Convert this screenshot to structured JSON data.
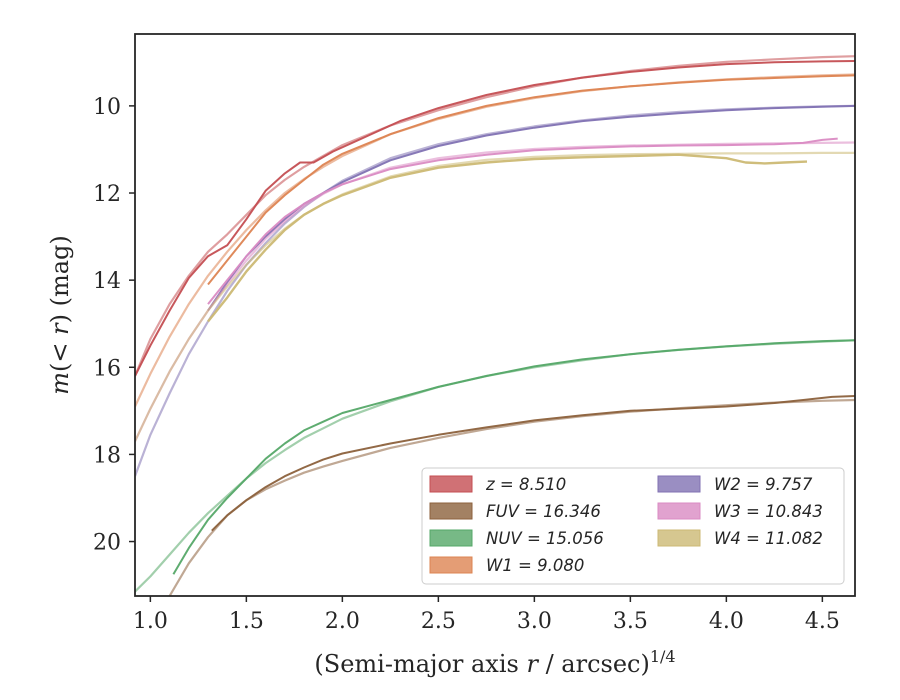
{
  "chart_data": {
    "type": "line",
    "xlabel": "(Semi-major axis r / arcsec)^{1/4}",
    "ylabel": "m(<r) (mag)",
    "xlim": [
      0.92,
      4.67
    ],
    "ylim": [
      21.25,
      8.35
    ],
    "y_inverted": true,
    "x_ticks": [
      1.0,
      1.5,
      2.0,
      2.5,
      3.0,
      3.5,
      4.0,
      4.5
    ],
    "x_tick_labels": [
      "1.0",
      "1.5",
      "2.0",
      "2.5",
      "3.0",
      "3.5",
      "4.0",
      "4.5"
    ],
    "y_ticks": [
      10,
      12,
      14,
      16,
      18,
      20
    ],
    "y_tick_labels": [
      "10",
      "12",
      "14",
      "16",
      "18",
      "20"
    ],
    "grid": false,
    "legend_position": "lower-right",
    "legend_columns": 2,
    "series": [
      {
        "name": "z = 8.510",
        "color": "#c44e52",
        "data_line": [
          [
            0.92,
            16.2
          ],
          [
            1.0,
            15.5
          ],
          [
            1.1,
            14.7
          ],
          [
            1.2,
            13.95
          ],
          [
            1.3,
            13.45
          ],
          [
            1.4,
            13.2
          ],
          [
            1.5,
            12.6
          ],
          [
            1.6,
            11.95
          ],
          [
            1.7,
            11.55
          ],
          [
            1.78,
            11.3
          ],
          [
            1.85,
            11.3
          ],
          [
            1.95,
            11.05
          ],
          [
            2.1,
            10.75
          ],
          [
            2.3,
            10.35
          ],
          [
            2.5,
            10.05
          ],
          [
            2.75,
            9.75
          ],
          [
            3.0,
            9.52
          ],
          [
            3.25,
            9.35
          ],
          [
            3.5,
            9.22
          ],
          [
            3.75,
            9.12
          ],
          [
            4.0,
            9.04
          ],
          [
            4.25,
            9.0
          ],
          [
            4.5,
            8.98
          ],
          [
            4.67,
            8.97
          ]
        ],
        "model_line": [
          [
            0.92,
            16.2
          ],
          [
            1.0,
            15.35
          ],
          [
            1.1,
            14.55
          ],
          [
            1.2,
            13.9
          ],
          [
            1.3,
            13.35
          ],
          [
            1.4,
            12.95
          ],
          [
            1.5,
            12.5
          ],
          [
            1.6,
            12.05
          ],
          [
            1.7,
            11.7
          ],
          [
            1.8,
            11.4
          ],
          [
            1.9,
            11.15
          ],
          [
            2.0,
            10.9
          ],
          [
            2.25,
            10.45
          ],
          [
            2.5,
            10.1
          ],
          [
            2.75,
            9.8
          ],
          [
            3.0,
            9.55
          ],
          [
            3.25,
            9.35
          ],
          [
            3.5,
            9.2
          ],
          [
            3.75,
            9.08
          ],
          [
            4.0,
            8.99
          ],
          [
            4.25,
            8.93
          ],
          [
            4.5,
            8.88
          ],
          [
            4.67,
            8.86
          ]
        ]
      },
      {
        "name": "FUV = 16.346",
        "color": "#8c613c",
        "data_line": [
          [
            1.32,
            19.75
          ],
          [
            1.4,
            19.4
          ],
          [
            1.5,
            19.05
          ],
          [
            1.6,
            18.75
          ],
          [
            1.7,
            18.5
          ],
          [
            1.8,
            18.3
          ],
          [
            1.9,
            18.12
          ],
          [
            2.0,
            17.98
          ],
          [
            2.25,
            17.75
          ],
          [
            2.5,
            17.55
          ],
          [
            2.75,
            17.38
          ],
          [
            3.0,
            17.22
          ],
          [
            3.25,
            17.1
          ],
          [
            3.5,
            17.0
          ],
          [
            3.75,
            16.95
          ],
          [
            4.0,
            16.9
          ],
          [
            4.25,
            16.82
          ],
          [
            4.4,
            16.75
          ],
          [
            4.55,
            16.68
          ],
          [
            4.67,
            16.66
          ]
        ],
        "model_line": [
          [
            1.1,
            21.25
          ],
          [
            1.2,
            20.5
          ],
          [
            1.3,
            19.9
          ],
          [
            1.4,
            19.4
          ],
          [
            1.5,
            19.05
          ],
          [
            1.6,
            18.8
          ],
          [
            1.7,
            18.6
          ],
          [
            1.8,
            18.42
          ],
          [
            1.9,
            18.28
          ],
          [
            2.0,
            18.15
          ],
          [
            2.25,
            17.85
          ],
          [
            2.5,
            17.62
          ],
          [
            2.75,
            17.42
          ],
          [
            3.0,
            17.25
          ],
          [
            3.25,
            17.12
          ],
          [
            3.5,
            17.02
          ],
          [
            3.75,
            16.94
          ],
          [
            4.0,
            16.87
          ],
          [
            4.25,
            16.81
          ],
          [
            4.5,
            16.77
          ],
          [
            4.67,
            16.75
          ]
        ]
      },
      {
        "name": "NUV = 15.056",
        "color": "#55a868",
        "data_line": [
          [
            1.12,
            20.75
          ],
          [
            1.2,
            20.15
          ],
          [
            1.3,
            19.5
          ],
          [
            1.4,
            19.0
          ],
          [
            1.5,
            18.55
          ],
          [
            1.6,
            18.1
          ],
          [
            1.7,
            17.75
          ],
          [
            1.8,
            17.45
          ],
          [
            1.9,
            17.25
          ],
          [
            2.0,
            17.05
          ],
          [
            2.25,
            16.75
          ],
          [
            2.5,
            16.45
          ],
          [
            2.75,
            16.2
          ],
          [
            3.0,
            15.98
          ],
          [
            3.25,
            15.82
          ],
          [
            3.5,
            15.7
          ],
          [
            3.75,
            15.6
          ],
          [
            4.0,
            15.52
          ],
          [
            4.25,
            15.45
          ],
          [
            4.5,
            15.4
          ],
          [
            4.67,
            15.38
          ]
        ],
        "model_line": [
          [
            0.92,
            21.15
          ],
          [
            1.0,
            20.8
          ],
          [
            1.1,
            20.3
          ],
          [
            1.2,
            19.8
          ],
          [
            1.3,
            19.35
          ],
          [
            1.4,
            18.95
          ],
          [
            1.5,
            18.55
          ],
          [
            1.6,
            18.2
          ],
          [
            1.7,
            17.9
          ],
          [
            1.8,
            17.62
          ],
          [
            1.9,
            17.4
          ],
          [
            2.0,
            17.18
          ],
          [
            2.25,
            16.78
          ],
          [
            2.5,
            16.45
          ],
          [
            2.75,
            16.2
          ],
          [
            3.0,
            16.0
          ],
          [
            3.25,
            15.84
          ],
          [
            3.5,
            15.7
          ],
          [
            3.75,
            15.6
          ],
          [
            4.0,
            15.52
          ],
          [
            4.25,
            15.46
          ],
          [
            4.5,
            15.41
          ],
          [
            4.67,
            15.38
          ]
        ]
      },
      {
        "name": "W1 = 9.080",
        "color": "#dd8452",
        "data_line": [
          [
            1.3,
            14.1
          ],
          [
            1.4,
            13.55
          ],
          [
            1.5,
            13.0
          ],
          [
            1.6,
            12.45
          ],
          [
            1.7,
            12.05
          ],
          [
            1.8,
            11.7
          ],
          [
            1.9,
            11.35
          ],
          [
            2.0,
            11.1
          ],
          [
            2.25,
            10.65
          ],
          [
            2.5,
            10.28
          ],
          [
            2.75,
            10.0
          ],
          [
            3.0,
            9.8
          ],
          [
            3.25,
            9.65
          ],
          [
            3.5,
            9.55
          ],
          [
            3.75,
            9.47
          ],
          [
            4.0,
            9.4
          ],
          [
            4.25,
            9.36
          ],
          [
            4.5,
            9.32
          ],
          [
            4.67,
            9.3
          ]
        ],
        "model_line": [
          [
            0.92,
            16.9
          ],
          [
            1.0,
            16.15
          ],
          [
            1.1,
            15.3
          ],
          [
            1.2,
            14.55
          ],
          [
            1.3,
            13.9
          ],
          [
            1.4,
            13.35
          ],
          [
            1.5,
            12.85
          ],
          [
            1.6,
            12.4
          ],
          [
            1.7,
            12.0
          ],
          [
            1.8,
            11.68
          ],
          [
            1.9,
            11.4
          ],
          [
            2.0,
            11.15
          ],
          [
            2.25,
            10.65
          ],
          [
            2.5,
            10.3
          ],
          [
            2.75,
            10.02
          ],
          [
            3.0,
            9.82
          ],
          [
            3.25,
            9.66
          ],
          [
            3.5,
            9.55
          ],
          [
            3.75,
            9.46
          ],
          [
            4.0,
            9.39
          ],
          [
            4.25,
            9.34
          ],
          [
            4.5,
            9.3
          ],
          [
            4.67,
            9.28
          ]
        ]
      },
      {
        "name": "W2 = 9.757",
        "color": "#8172b3",
        "data_line": [
          [
            1.3,
            14.7
          ],
          [
            1.4,
            14.05
          ],
          [
            1.5,
            13.45
          ],
          [
            1.6,
            13.0
          ],
          [
            1.7,
            12.6
          ],
          [
            1.8,
            12.25
          ],
          [
            1.9,
            12.0
          ],
          [
            2.0,
            11.75
          ],
          [
            2.25,
            11.25
          ],
          [
            2.5,
            10.92
          ],
          [
            2.75,
            10.68
          ],
          [
            3.0,
            10.5
          ],
          [
            3.25,
            10.35
          ],
          [
            3.5,
            10.25
          ],
          [
            3.75,
            10.17
          ],
          [
            4.0,
            10.1
          ],
          [
            4.25,
            10.05
          ],
          [
            4.5,
            10.02
          ],
          [
            4.67,
            10.0
          ]
        ],
        "model_line": [
          [
            0.92,
            18.5
          ],
          [
            1.0,
            17.55
          ],
          [
            1.1,
            16.6
          ],
          [
            1.2,
            15.7
          ],
          [
            1.3,
            14.95
          ],
          [
            1.4,
            14.25
          ],
          [
            1.5,
            13.65
          ],
          [
            1.6,
            13.15
          ],
          [
            1.7,
            12.7
          ],
          [
            1.8,
            12.32
          ],
          [
            1.9,
            12.0
          ],
          [
            2.0,
            11.72
          ],
          [
            2.25,
            11.2
          ],
          [
            2.5,
            10.88
          ],
          [
            2.75,
            10.65
          ],
          [
            3.0,
            10.47
          ],
          [
            3.25,
            10.33
          ],
          [
            3.5,
            10.22
          ],
          [
            3.75,
            10.14
          ],
          [
            4.0,
            10.08
          ],
          [
            4.25,
            10.04
          ],
          [
            4.5,
            10.01
          ],
          [
            4.67,
            10.0
          ]
        ]
      },
      {
        "name": "W3 = 10.843",
        "color": "#da8bc3",
        "data_line": [
          [
            1.3,
            14.55
          ],
          [
            1.4,
            14.0
          ],
          [
            1.5,
            13.45
          ],
          [
            1.6,
            12.95
          ],
          [
            1.7,
            12.55
          ],
          [
            1.8,
            12.25
          ],
          [
            1.9,
            12.0
          ],
          [
            2.0,
            11.8
          ],
          [
            2.25,
            11.45
          ],
          [
            2.5,
            11.25
          ],
          [
            2.75,
            11.12
          ],
          [
            3.0,
            11.02
          ],
          [
            3.25,
            10.97
          ],
          [
            3.5,
            10.93
          ],
          [
            3.75,
            10.91
          ],
          [
            4.0,
            10.9
          ],
          [
            4.25,
            10.88
          ],
          [
            4.4,
            10.85
          ],
          [
            4.5,
            10.78
          ],
          [
            4.58,
            10.75
          ]
        ],
        "model_line": [
          [
            0.92,
            17.7
          ],
          [
            1.0,
            16.95
          ],
          [
            1.1,
            16.1
          ],
          [
            1.2,
            15.35
          ],
          [
            1.3,
            14.7
          ],
          [
            1.4,
            14.1
          ],
          [
            1.5,
            13.55
          ],
          [
            1.6,
            13.05
          ],
          [
            1.7,
            12.65
          ],
          [
            1.8,
            12.3
          ],
          [
            1.9,
            12.02
          ],
          [
            2.0,
            11.8
          ],
          [
            2.25,
            11.42
          ],
          [
            2.5,
            11.2
          ],
          [
            2.75,
            11.07
          ],
          [
            3.0,
            10.99
          ],
          [
            3.25,
            10.94
          ],
          [
            3.5,
            10.91
          ],
          [
            3.75,
            10.89
          ],
          [
            4.0,
            10.87
          ],
          [
            4.25,
            10.86
          ],
          [
            4.5,
            10.85
          ],
          [
            4.67,
            10.84
          ]
        ]
      },
      {
        "name": "W4 = 11.082",
        "color": "#ccb974",
        "data_line": [
          [
            1.3,
            14.95
          ],
          [
            1.4,
            14.4
          ],
          [
            1.5,
            13.8
          ],
          [
            1.6,
            13.3
          ],
          [
            1.7,
            12.85
          ],
          [
            1.8,
            12.5
          ],
          [
            1.9,
            12.25
          ],
          [
            2.0,
            12.05
          ],
          [
            2.25,
            11.65
          ],
          [
            2.5,
            11.42
          ],
          [
            2.75,
            11.3
          ],
          [
            3.0,
            11.22
          ],
          [
            3.25,
            11.18
          ],
          [
            3.5,
            11.15
          ],
          [
            3.75,
            11.12
          ],
          [
            4.0,
            11.2
          ],
          [
            4.1,
            11.3
          ],
          [
            4.2,
            11.32
          ],
          [
            4.3,
            11.3
          ],
          [
            4.42,
            11.28
          ]
        ],
        "model_line": [
          [
            0.92,
            17.7
          ],
          [
            1.0,
            16.95
          ],
          [
            1.1,
            16.1
          ],
          [
            1.2,
            15.35
          ],
          [
            1.3,
            14.7
          ],
          [
            1.4,
            14.15
          ],
          [
            1.5,
            13.65
          ],
          [
            1.6,
            13.2
          ],
          [
            1.7,
            12.82
          ],
          [
            1.8,
            12.5
          ],
          [
            1.9,
            12.25
          ],
          [
            2.0,
            12.03
          ],
          [
            2.25,
            11.62
          ],
          [
            2.5,
            11.38
          ],
          [
            2.75,
            11.24
          ],
          [
            3.0,
            11.17
          ],
          [
            3.25,
            11.13
          ],
          [
            3.5,
            11.11
          ],
          [
            3.75,
            11.1
          ],
          [
            4.0,
            11.09
          ],
          [
            4.25,
            11.09
          ],
          [
            4.5,
            11.08
          ],
          [
            4.67,
            11.08
          ]
        ]
      }
    ]
  }
}
